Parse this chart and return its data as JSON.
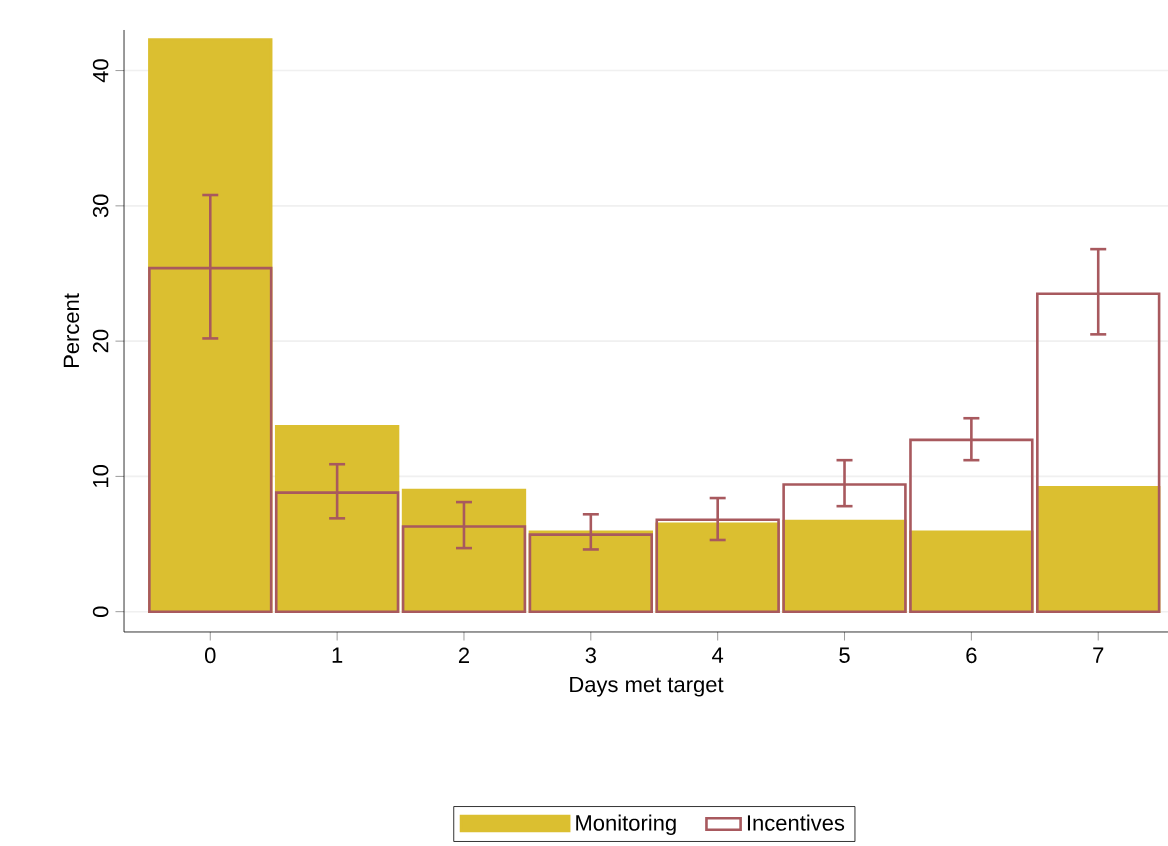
{
  "chart_data": {
    "type": "bar",
    "xlabel": "Days met target",
    "ylabel": "Percent",
    "categories": [
      "0",
      "1",
      "2",
      "3",
      "4",
      "5",
      "6",
      "7"
    ],
    "series": [
      {
        "name": "Monitoring",
        "color": "#dbbf30",
        "values": [
          42.3,
          13.7,
          9.0,
          5.9,
          6.5,
          6.7,
          5.9,
          9.2
        ]
      },
      {
        "name": "Incentives",
        "color": "#a8595e",
        "values": [
          25.4,
          8.8,
          6.3,
          5.7,
          6.8,
          9.4,
          12.7,
          23.5
        ],
        "errors": [
          [
            20.2,
            30.8
          ],
          [
            6.9,
            10.9
          ],
          [
            4.7,
            8.1
          ],
          [
            4.6,
            7.2
          ],
          [
            5.3,
            8.4
          ],
          [
            7.8,
            11.2
          ],
          [
            11.2,
            14.3
          ],
          [
            20.5,
            26.8
          ]
        ]
      }
    ],
    "ylim": [
      -1.5,
      43
    ],
    "yticks": [
      0,
      10,
      20,
      30,
      40
    ],
    "grid": "y",
    "legend": "bottom"
  }
}
